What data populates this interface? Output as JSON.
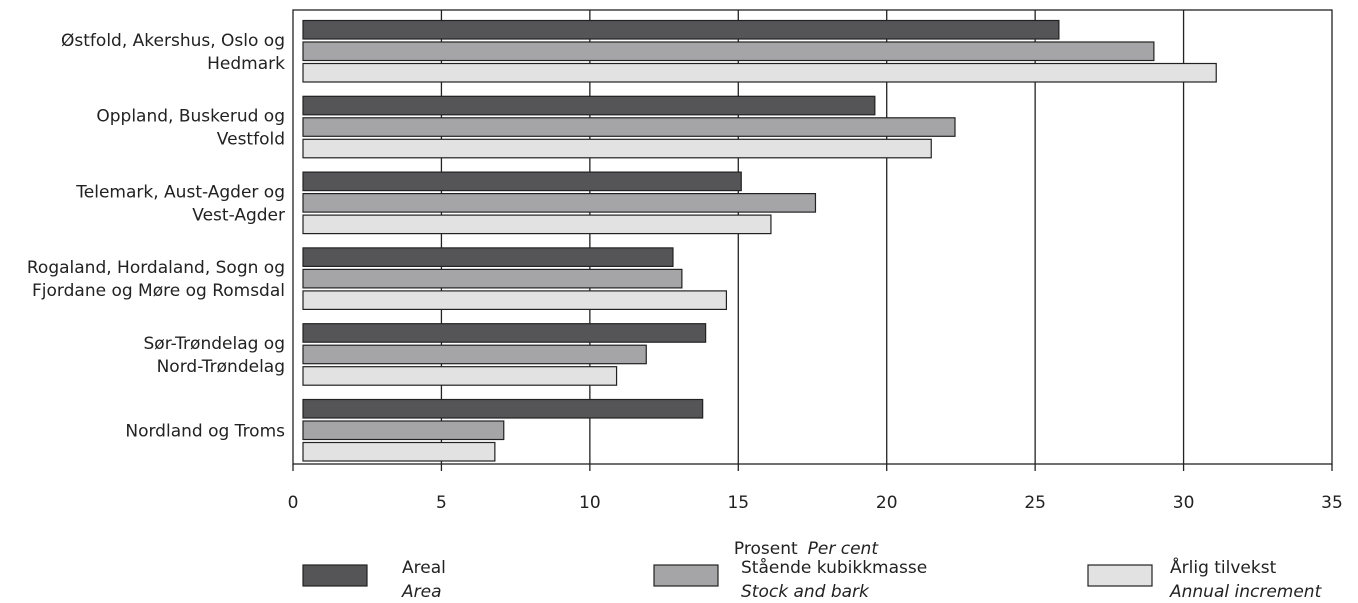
{
  "chart_data": {
    "type": "bar",
    "orientation": "horizontal",
    "categories": [
      [
        "Østfold, Akershus, Oslo og",
        "Hedmark"
      ],
      [
        "Oppland, Buskerud og",
        "Vestfold"
      ],
      [
        "Telemark, Aust-Agder og",
        "Vest-Agder"
      ],
      [
        "Rogaland, Hordaland, Sogn og",
        "Fjordane og Møre og Romsdal"
      ],
      [
        "Sør-Trøndelag og",
        "Nord-Trøndelag"
      ],
      [
        "Nordland og Troms"
      ]
    ],
    "series": [
      {
        "name": "Areal",
        "name_en": "Area",
        "color": "#555558",
        "values": [
          25.8,
          19.6,
          15.1,
          12.8,
          13.9,
          13.8
        ]
      },
      {
        "name": "Stående kubikkmasse",
        "name_en": "Stock and bark",
        "color": "#a5a5a8",
        "values": [
          29.0,
          22.3,
          17.6,
          13.1,
          11.9,
          7.1
        ]
      },
      {
        "name": "Årlig tilvekst",
        "name_en": "Annual increment",
        "color": "#e2e2e2",
        "values": [
          31.1,
          21.5,
          16.1,
          14.6,
          10.9,
          6.8
        ]
      }
    ],
    "xlabel": "Prosent",
    "xlabel_en": "Per cent",
    "xlim": [
      0,
      35
    ],
    "xticks": [
      "0",
      "5",
      "10",
      "15",
      "20",
      "25",
      "30",
      "35"
    ],
    "grid": true,
    "legend_position": "bottom"
  }
}
